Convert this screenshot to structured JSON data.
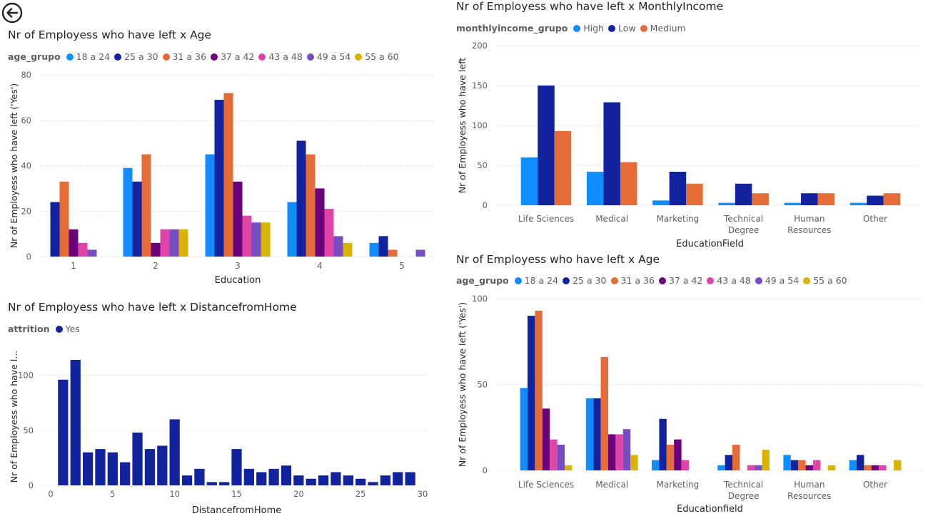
{
  "chart_data": [
    {
      "id": "c1",
      "type": "bar",
      "title": "Nr of Employess who have left x Age",
      "legend_title": "age_grupo",
      "legend_position": "top-left",
      "xlabel": "Education",
      "ylabel": "Nr of Employess who have left ('Yes')",
      "categories": [
        "1",
        "2",
        "3",
        "4",
        "5"
      ],
      "ylim": [
        0,
        80
      ],
      "yticks": [
        0,
        20,
        40,
        60,
        80
      ],
      "grid": true,
      "series": [
        {
          "name": "18 a 24",
          "color": "#118DFF",
          "values": [
            0,
            39,
            45,
            24,
            6
          ]
        },
        {
          "name": "25 a 30",
          "color": "#12239E",
          "values": [
            24,
            33,
            69,
            51,
            9
          ]
        },
        {
          "name": "31 a 36",
          "color": "#E66C37",
          "values": [
            33,
            45,
            72,
            45,
            3
          ]
        },
        {
          "name": "37 a 42",
          "color": "#6B007B",
          "values": [
            12,
            6,
            33,
            30,
            0
          ]
        },
        {
          "name": "43 a 48",
          "color": "#E044A7",
          "values": [
            6,
            12,
            18,
            21,
            0
          ]
        },
        {
          "name": "49 a 54",
          "color": "#744EC2",
          "values": [
            3,
            12,
            15,
            9,
            3
          ]
        },
        {
          "name": "55 a 60",
          "color": "#D9B300",
          "values": [
            0,
            12,
            15,
            6,
            0
          ]
        }
      ]
    },
    {
      "id": "c2",
      "type": "bar",
      "title": "Nr of Employess who have left x DistancefromHome",
      "legend_title": "attrition",
      "legend_position": "top-left",
      "xlabel": "DistancefromHome",
      "ylabel": "Nr of Employess who have l...",
      "x": [
        1,
        2,
        3,
        4,
        5,
        6,
        7,
        8,
        9,
        10,
        11,
        12,
        13,
        14,
        15,
        16,
        17,
        18,
        19,
        20,
        21,
        22,
        23,
        24,
        25,
        26,
        27,
        28,
        29
      ],
      "xlim": [
        0,
        30
      ],
      "xticks": [
        0,
        5,
        10,
        15,
        20,
        25,
        30
      ],
      "ylim": [
        0,
        125
      ],
      "yticks": [
        0,
        50,
        100
      ],
      "grid": true,
      "series": [
        {
          "name": "Yes",
          "color": "#12239E",
          "values": [
            96,
            114,
            30,
            33,
            30,
            21,
            48,
            33,
            36,
            60,
            9,
            15,
            3,
            3,
            33,
            15,
            12,
            15,
            18,
            9,
            6,
            9,
            12,
            9,
            6,
            3,
            9,
            12,
            12
          ]
        }
      ]
    },
    {
      "id": "c3",
      "type": "bar",
      "title": "Nr of Employess who have left x MonthlyIncome",
      "legend_title": "monthlyincome_grupo",
      "legend_position": "top-left",
      "xlabel": "EducationField",
      "ylabel": "Nr of Employess who have left",
      "categories": [
        "Life Sciences",
        "Medical",
        "Marketing",
        "Technical Degree",
        "Human Resources",
        "Other"
      ],
      "ylim": [
        0,
        200
      ],
      "yticks": [
        0,
        50,
        100,
        150,
        200
      ],
      "grid": true,
      "series": [
        {
          "name": "High",
          "color": "#118DFF",
          "values": [
            60,
            42,
            6,
            3,
            3,
            3
          ]
        },
        {
          "name": "Low",
          "color": "#12239E",
          "values": [
            150,
            129,
            42,
            27,
            15,
            12
          ]
        },
        {
          "name": "Medium",
          "color": "#E66C37",
          "values": [
            93,
            54,
            27,
            15,
            15,
            15
          ]
        }
      ]
    },
    {
      "id": "c4",
      "type": "bar",
      "title": "Nr of Employess who have left x Age",
      "legend_title": "age_grupo",
      "legend_position": "top-left",
      "xlabel": "Educationfield",
      "ylabel": "Nr of Employess who have left ('Yes')",
      "categories": [
        "Life Sciences",
        "Medical",
        "Marketing",
        "Technical Degree",
        "Human Resources",
        "Other"
      ],
      "ylim": [
        0,
        100
      ],
      "yticks": [
        0,
        50,
        100
      ],
      "grid": true,
      "series": [
        {
          "name": "18 a 24",
          "color": "#118DFF",
          "values": [
            48,
            42,
            6,
            3,
            9,
            6
          ]
        },
        {
          "name": "25 a 30",
          "color": "#12239E",
          "values": [
            90,
            42,
            30,
            9,
            6,
            9
          ]
        },
        {
          "name": "31 a 36",
          "color": "#E66C37",
          "values": [
            93,
            66,
            15,
            15,
            6,
            3
          ]
        },
        {
          "name": "37 a 42",
          "color": "#6B007B",
          "values": [
            36,
            21,
            18,
            0,
            3,
            3
          ]
        },
        {
          "name": "43 a 48",
          "color": "#E044A7",
          "values": [
            18,
            21,
            6,
            3,
            6,
            3
          ]
        },
        {
          "name": "49 a 54",
          "color": "#744EC2",
          "values": [
            15,
            24,
            0,
            3,
            0,
            0
          ]
        },
        {
          "name": "55 a 60",
          "color": "#D9B300",
          "values": [
            3,
            9,
            0,
            12,
            3,
            6
          ]
        }
      ]
    }
  ]
}
